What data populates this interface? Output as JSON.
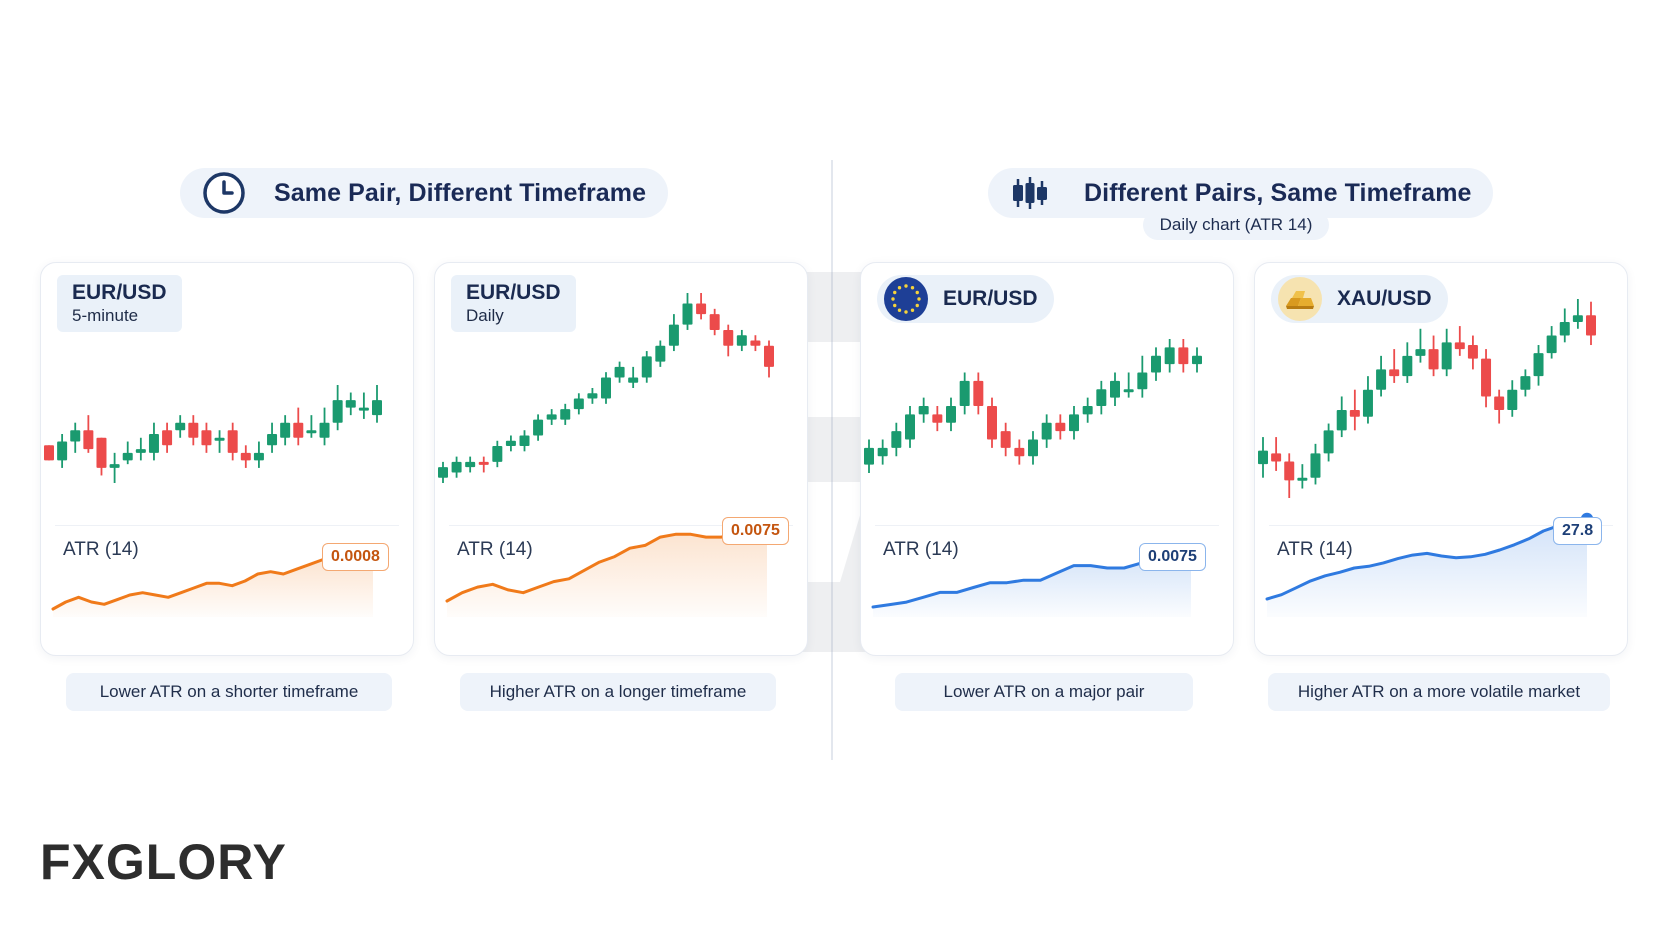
{
  "sections": {
    "left": {
      "title": "Same Pair, Different Timeframe",
      "icon": "clock-icon"
    },
    "right": {
      "title": "Different Pairs, Same Timeframe",
      "icon": "candlestick-icon",
      "subtitle": "Daily chart (ATR 14)"
    }
  },
  "brand": {
    "logo_text": "FXGLORY",
    "accent": "#f07a1a"
  },
  "colors": {
    "bull": "#1a9a6f",
    "bear": "#ec4b4b",
    "atr_orange": "#f07a1a",
    "atr_blue": "#2f7ae0"
  },
  "cards": [
    {
      "pair": "EUR/USD",
      "timeframe": "5-minute",
      "atr_label": "ATR (14)",
      "atr_value": "0.0008",
      "atr_color": "orange",
      "caption": "Lower ATR on a shorter timeframe"
    },
    {
      "pair": "EUR/USD",
      "timeframe": "Daily",
      "atr_label": "ATR (14)",
      "atr_value": "0.0075",
      "atr_color": "orange",
      "caption": "Higher ATR on a longer timeframe"
    },
    {
      "pair": "EUR/USD",
      "flag_icon": "eu-flag-icon",
      "atr_label": "ATR (14)",
      "atr_value": "0.0075",
      "atr_color": "blue",
      "caption": "Lower ATR on a major pair"
    },
    {
      "pair": "XAU/USD",
      "flag_icon": "gold-bars-icon",
      "atr_label": "ATR (14)",
      "atr_value": "27.8",
      "atr_color": "blue",
      "caption": "Higher ATR on a more volatile market"
    }
  ],
  "chart_data": [
    {
      "type": "candlestick",
      "title": "EUR/USD 5-minute",
      "candles": [
        [
          1.07,
          1.05,
          1.07,
          1.05
        ],
        [
          1.05,
          1.075,
          1.085,
          1.04
        ],
        [
          1.075,
          1.09,
          1.1,
          1.06
        ],
        [
          1.09,
          1.065,
          1.11,
          1.06
        ],
        [
          1.08,
          1.04,
          1.08,
          1.03
        ],
        [
          1.04,
          1.045,
          1.06,
          1.02
        ],
        [
          1.05,
          1.06,
          1.075,
          1.045
        ],
        [
          1.06,
          1.065,
          1.08,
          1.05
        ],
        [
          1.06,
          1.085,
          1.1,
          1.05
        ],
        [
          1.09,
          1.07,
          1.1,
          1.06
        ],
        [
          1.09,
          1.1,
          1.11,
          1.08
        ],
        [
          1.1,
          1.08,
          1.11,
          1.07
        ],
        [
          1.09,
          1.07,
          1.1,
          1.06
        ],
        [
          1.08,
          1.08,
          1.09,
          1.06
        ],
        [
          1.09,
          1.06,
          1.1,
          1.05
        ],
        [
          1.06,
          1.05,
          1.07,
          1.04
        ],
        [
          1.05,
          1.06,
          1.075,
          1.04
        ],
        [
          1.07,
          1.085,
          1.1,
          1.06
        ],
        [
          1.08,
          1.1,
          1.11,
          1.07
        ],
        [
          1.1,
          1.08,
          1.12,
          1.07
        ],
        [
          1.09,
          1.09,
          1.11,
          1.08
        ],
        [
          1.08,
          1.1,
          1.12,
          1.07
        ],
        [
          1.1,
          1.13,
          1.15,
          1.09
        ],
        [
          1.12,
          1.13,
          1.14,
          1.11
        ],
        [
          1.12,
          1.12,
          1.14,
          1.105
        ],
        [
          1.11,
          1.13,
          1.15,
          1.1
        ]
      ],
      "atr": [
        0.00055,
        0.00058,
        0.0006,
        0.00058,
        0.00057,
        0.00059,
        0.00061,
        0.00062,
        0.00061,
        0.0006,
        0.00062,
        0.00064,
        0.00066,
        0.00066,
        0.00065,
        0.00067,
        0.0007,
        0.00071,
        0.0007,
        0.00072,
        0.00074,
        0.00076,
        0.00078,
        0.00079,
        0.00078,
        0.00079
      ]
    },
    {
      "type": "candlestick",
      "title": "EUR/USD Daily",
      "candles": [
        [
          1.05,
          1.07,
          1.08,
          1.04
        ],
        [
          1.06,
          1.08,
          1.09,
          1.05
        ],
        [
          1.07,
          1.08,
          1.09,
          1.06
        ],
        [
          1.08,
          1.075,
          1.09,
          1.06
        ],
        [
          1.08,
          1.11,
          1.12,
          1.07
        ],
        [
          1.11,
          1.12,
          1.13,
          1.1
        ],
        [
          1.11,
          1.13,
          1.14,
          1.1
        ],
        [
          1.13,
          1.16,
          1.17,
          1.12
        ],
        [
          1.16,
          1.17,
          1.18,
          1.15
        ],
        [
          1.16,
          1.18,
          1.19,
          1.15
        ],
        [
          1.18,
          1.2,
          1.21,
          1.17
        ],
        [
          1.2,
          1.21,
          1.22,
          1.19
        ],
        [
          1.2,
          1.24,
          1.25,
          1.19
        ],
        [
          1.24,
          1.26,
          1.27,
          1.23
        ],
        [
          1.23,
          1.24,
          1.26,
          1.22
        ],
        [
          1.24,
          1.28,
          1.29,
          1.23
        ],
        [
          1.27,
          1.3,
          1.31,
          1.26
        ],
        [
          1.3,
          1.34,
          1.36,
          1.29
        ],
        [
          1.34,
          1.38,
          1.4,
          1.33
        ],
        [
          1.38,
          1.36,
          1.4,
          1.35
        ],
        [
          1.36,
          1.33,
          1.37,
          1.32
        ],
        [
          1.33,
          1.3,
          1.34,
          1.28
        ],
        [
          1.3,
          1.32,
          1.33,
          1.29
        ],
        [
          1.31,
          1.3,
          1.32,
          1.29
        ],
        [
          1.3,
          1.26,
          1.31,
          1.24
        ]
      ],
      "atr": [
        0.0048,
        0.0051,
        0.0053,
        0.0054,
        0.0052,
        0.0051,
        0.0053,
        0.0055,
        0.0056,
        0.0059,
        0.0062,
        0.0064,
        0.0067,
        0.0068,
        0.0071,
        0.0072,
        0.0072,
        0.0071,
        0.0071,
        0.0073,
        0.0074,
        0.0075
      ]
    },
    {
      "type": "candlestick",
      "title": "EUR/USD",
      "candles": [
        [
          1.03,
          1.05,
          1.06,
          1.02
        ],
        [
          1.04,
          1.05,
          1.06,
          1.03
        ],
        [
          1.05,
          1.07,
          1.08,
          1.04
        ],
        [
          1.06,
          1.09,
          1.1,
          1.05
        ],
        [
          1.09,
          1.1,
          1.11,
          1.08
        ],
        [
          1.09,
          1.08,
          1.1,
          1.07
        ],
        [
          1.08,
          1.1,
          1.11,
          1.07
        ],
        [
          1.1,
          1.13,
          1.14,
          1.09
        ],
        [
          1.13,
          1.1,
          1.14,
          1.09
        ],
        [
          1.1,
          1.06,
          1.11,
          1.05
        ],
        [
          1.07,
          1.05,
          1.08,
          1.04
        ],
        [
          1.05,
          1.04,
          1.06,
          1.03
        ],
        [
          1.04,
          1.06,
          1.07,
          1.03
        ],
        [
          1.06,
          1.08,
          1.09,
          1.05
        ],
        [
          1.08,
          1.07,
          1.09,
          1.06
        ],
        [
          1.07,
          1.09,
          1.1,
          1.06
        ],
        [
          1.09,
          1.1,
          1.11,
          1.08
        ],
        [
          1.1,
          1.12,
          1.13,
          1.09
        ],
        [
          1.11,
          1.13,
          1.14,
          1.1
        ],
        [
          1.12,
          1.12,
          1.14,
          1.11
        ],
        [
          1.12,
          1.14,
          1.16,
          1.11
        ],
        [
          1.14,
          1.16,
          1.17,
          1.13
        ],
        [
          1.15,
          1.17,
          1.18,
          1.14
        ],
        [
          1.17,
          1.15,
          1.18,
          1.14
        ],
        [
          1.15,
          1.16,
          1.17,
          1.14
        ]
      ],
      "atr": [
        0.0052,
        0.0053,
        0.0054,
        0.0056,
        0.0058,
        0.0058,
        0.006,
        0.0062,
        0.0062,
        0.0063,
        0.0063,
        0.0066,
        0.0069,
        0.0069,
        0.0068,
        0.0068,
        0.007,
        0.0072,
        0.0074,
        0.0075
      ]
    },
    {
      "type": "candlestick",
      "title": "XAU/USD",
      "candles": [
        [
          2310,
          2320,
          2330,
          2300
        ],
        [
          2318,
          2312,
          2330,
          2305
        ],
        [
          2312,
          2298,
          2318,
          2285
        ],
        [
          2298,
          2300,
          2310,
          2292
        ],
        [
          2300,
          2318,
          2325,
          2295
        ],
        [
          2318,
          2335,
          2340,
          2312
        ],
        [
          2335,
          2350,
          2360,
          2330
        ],
        [
          2350,
          2345,
          2365,
          2335
        ],
        [
          2345,
          2365,
          2375,
          2340
        ],
        [
          2365,
          2380,
          2390,
          2360
        ],
        [
          2380,
          2375,
          2395,
          2370
        ],
        [
          2375,
          2390,
          2400,
          2370
        ],
        [
          2390,
          2395,
          2410,
          2385
        ],
        [
          2395,
          2380,
          2405,
          2375
        ],
        [
          2380,
          2400,
          2410,
          2375
        ],
        [
          2400,
          2395,
          2412,
          2390
        ],
        [
          2398,
          2388,
          2405,
          2380
        ],
        [
          2388,
          2360,
          2395,
          2352
        ],
        [
          2360,
          2350,
          2365,
          2340
        ],
        [
          2350,
          2365,
          2372,
          2345
        ],
        [
          2365,
          2375,
          2380,
          2360
        ],
        [
          2375,
          2392,
          2398,
          2368
        ],
        [
          2392,
          2405,
          2412,
          2388
        ],
        [
          2405,
          2415,
          2425,
          2400
        ],
        [
          2415,
          2420,
          2432,
          2410
        ],
        [
          2420,
          2405,
          2430,
          2398
        ]
      ],
      "atr": [
        18.5,
        19.0,
        19.8,
        20.6,
        21.2,
        21.6,
        22.1,
        22.3,
        22.7,
        23.2,
        23.6,
        23.8,
        23.5,
        23.3,
        23.4,
        23.7,
        24.2,
        24.8,
        25.5,
        26.4,
        27.0,
        27.4,
        27.8
      ]
    }
  ]
}
